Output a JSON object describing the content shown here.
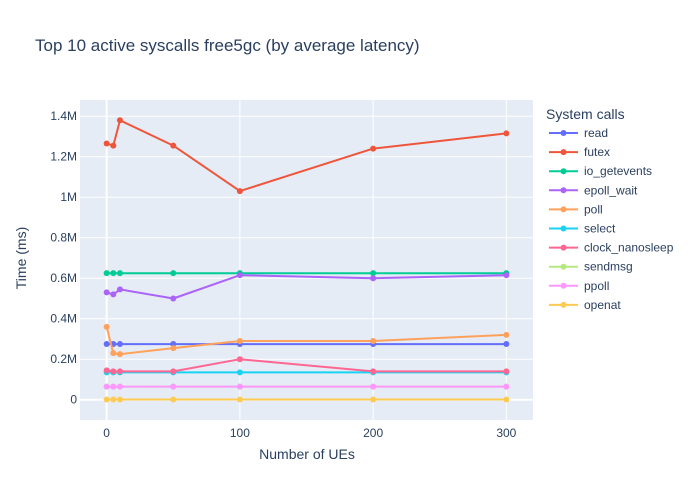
{
  "chart_data": {
    "type": "line",
    "title": "Top 10 active syscalls free5gc (by average latency)",
    "xlabel": "Number of UEs",
    "ylabel": "Time (ms)",
    "xlim": [
      -20,
      320
    ],
    "ylim": [
      -100000,
      1480000
    ],
    "x_ticks": [
      0,
      100,
      200,
      300
    ],
    "x_tick_labels": [
      "0",
      "100",
      "200",
      "300"
    ],
    "y_ticks": [
      0,
      200000,
      400000,
      600000,
      800000,
      1000000,
      1200000,
      1400000
    ],
    "y_tick_labels": [
      "0",
      "0.2M",
      "0.4M",
      "0.6M",
      "0.8M",
      "1M",
      "1.2M",
      "1.4M"
    ],
    "grid": true,
    "legend_title": "System calls",
    "legend_position": "right",
    "x": [
      0,
      5,
      10,
      50,
      100,
      200,
      300
    ],
    "series": [
      {
        "name": "read",
        "color": "#636efa",
        "values": [
          275000,
          275000,
          275000,
          275000,
          275000,
          275000,
          275000
        ]
      },
      {
        "name": "futex",
        "color": "#EF553B",
        "values": [
          1265000,
          1255000,
          1380000,
          1255000,
          1030000,
          1240000,
          1315000
        ]
      },
      {
        "name": "io_getevents",
        "color": "#00cc96",
        "values": [
          625000,
          625000,
          625000,
          625000,
          625000,
          625000,
          625000
        ]
      },
      {
        "name": "epoll_wait",
        "color": "#ab63fa",
        "values": [
          530000,
          520000,
          545000,
          500000,
          615000,
          600000,
          615000
        ]
      },
      {
        "name": "poll",
        "color": "#FFA15A",
        "values": [
          360000,
          230000,
          225000,
          255000,
          290000,
          290000,
          320000
        ]
      },
      {
        "name": "select",
        "color": "#19d3f3",
        "values": [
          135000,
          135000,
          135000,
          135000,
          135000,
          135000,
          135000
        ]
      },
      {
        "name": "clock_nanosleep",
        "color": "#FF6692",
        "values": [
          145000,
          140000,
          140000,
          140000,
          200000,
          140000,
          140000
        ]
      },
      {
        "name": "sendmsg",
        "color": "#B6E880",
        "values": [
          65000,
          65000,
          65000,
          65000,
          65000,
          65000,
          65000
        ]
      },
      {
        "name": "ppoll",
        "color": "#FF97FF",
        "values": [
          65000,
          65000,
          65000,
          65000,
          65000,
          65000,
          65000
        ]
      },
      {
        "name": "openat",
        "color": "#FECB52",
        "values": [
          1000,
          1000,
          1000,
          1000,
          1000,
          1000,
          1000
        ]
      }
    ]
  }
}
